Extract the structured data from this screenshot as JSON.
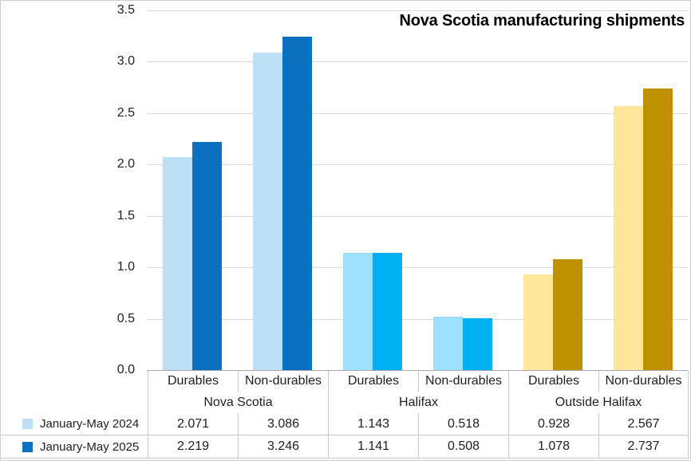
{
  "title": "Nova Scotia manufacturing shipments",
  "colors": {
    "nova_scotia_2024": "#BDDFF7",
    "nova_scotia_2025": "#0B70C0",
    "halifax_2024": "#9DE0FB",
    "halifax_2025": "#00B0F0",
    "outside_halifax_2024": "#FFE699",
    "outside_halifax_2025": "#BF9000",
    "gridline": "#D9D9D9",
    "axis_line": "#A6A6A6",
    "table_border": "#C9C9C9",
    "text": "#1A1A1A"
  },
  "chart_data": {
    "type": "bar",
    "title": "Nova Scotia manufacturing shipments",
    "ylim": [
      0,
      3.5
    ],
    "ytick_step": 0.5,
    "grid": true,
    "legend_position": "bottom-table",
    "value_decimals": 3,
    "groups": [
      {
        "label": "Nova Scotia",
        "categories": [
          "Durables",
          "Non-durables"
        ]
      },
      {
        "label": "Halifax",
        "categories": [
          "Durables",
          "Non-durables"
        ]
      },
      {
        "label": "Outside Halifax",
        "categories": [
          "Durables",
          "Non-durables"
        ]
      }
    ],
    "series": [
      {
        "name": "January-May 2024",
        "legend_color": "#BDDFF7",
        "colors_by_group": [
          "#BDDFF7",
          "#9DE0FB",
          "#FFE699"
        ],
        "values": [
          2.071,
          3.086,
          1.143,
          0.518,
          0.928,
          2.567
        ]
      },
      {
        "name": "January-May 2025",
        "legend_color": "#0B70C0",
        "colors_by_group": [
          "#0B70C0",
          "#00B0F0",
          "#BF9000"
        ],
        "values": [
          2.219,
          3.246,
          1.141,
          0.508,
          1.078,
          2.737
        ]
      }
    ]
  }
}
